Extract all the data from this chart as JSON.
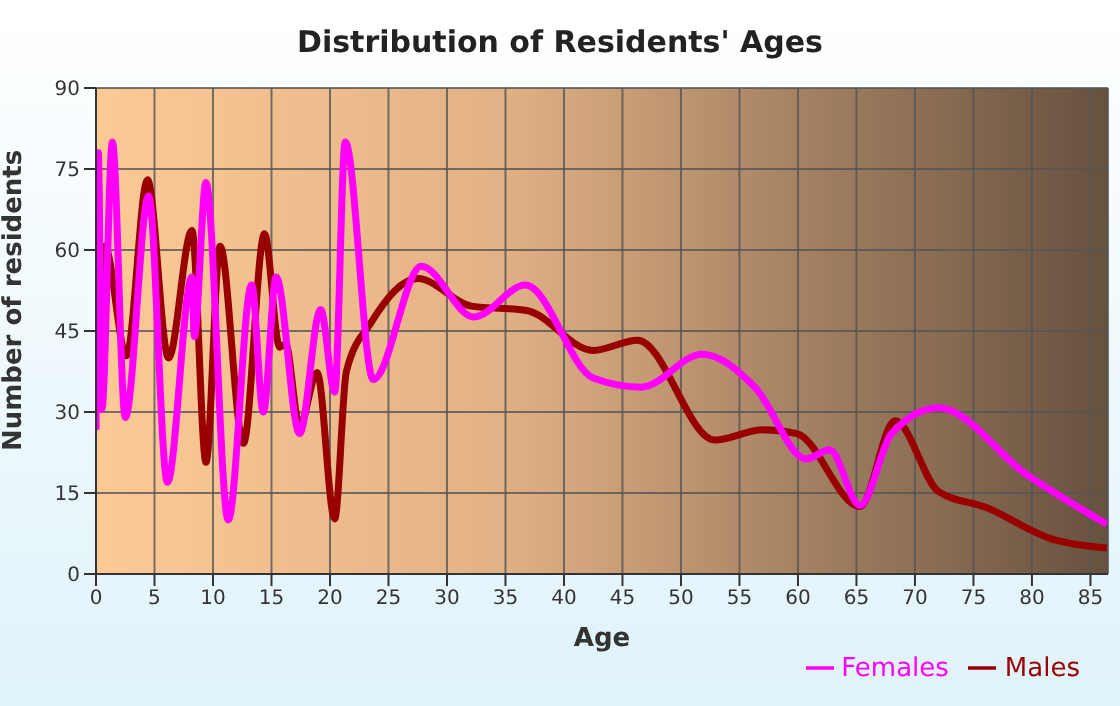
{
  "chart_data": {
    "type": "line",
    "title": "Distribution of Residents' Ages",
    "xlabel": "Age",
    "ylabel": "Number of residents",
    "xlim": [
      0,
      86.5
    ],
    "xticks": [
      0,
      5,
      10,
      15,
      20,
      25,
      30,
      35,
      40,
      45,
      50,
      55,
      60,
      65,
      70,
      75,
      80,
      85
    ],
    "ylim": [
      0,
      90
    ],
    "yticks": [
      0,
      15,
      30,
      45,
      60,
      75,
      90
    ],
    "grid": true,
    "legend": "bottom right",
    "marker": "none",
    "line_style": "solid",
    "series": [
      {
        "name": "Males",
        "color": "#990000",
        "x": [
          0,
          0.35,
          0.75,
          2.6,
          4.4,
          6.2,
          8.2,
          9.4,
          10.6,
          12.6,
          14.4,
          15.7,
          16.2,
          17.4,
          18.9,
          20.4,
          21.4,
          23.5,
          27.5,
          32.1,
          36.8,
          42.5,
          46.3,
          52.9,
          57,
          59.9,
          65.3,
          68.3,
          72,
          76.1,
          81.8,
          86.4
        ],
        "values": [
          66,
          42,
          60.7,
          40.4,
          73,
          40,
          63.6,
          20.7,
          60.7,
          24.2,
          63,
          42,
          42.6,
          27.4,
          37.3,
          10.2,
          37.5,
          46.5,
          54.7,
          49.6,
          48.8,
          41.4,
          43.3,
          24.8,
          26.7,
          26,
          12.5,
          28.4,
          15.3,
          12.3,
          6.4,
          4.8
        ]
      },
      {
        "name": "Females",
        "color": "#ff00ff",
        "x": [
          0,
          0.2,
          0.5,
          1.4,
          2.5,
          4.5,
          6.1,
          8.2,
          8.4,
          9.4,
          11.3,
          13.3,
          14.3,
          15.4,
          17.4,
          19.2,
          20.4,
          21.3,
          23.7,
          27.8,
          32.3,
          36.7,
          42.5,
          46.6,
          51.8,
          56.4,
          60.7,
          62.7,
          65.3,
          68,
          72,
          79.5,
          86.4
        ],
        "values": [
          26.7,
          78,
          30.5,
          80,
          29,
          70,
          17,
          55,
          44,
          72.5,
          10,
          53.5,
          30,
          55,
          26,
          49,
          33.7,
          80,
          36,
          57,
          47.6,
          53.5,
          36.3,
          34.6,
          40.7,
          34.4,
          21.3,
          23,
          12.7,
          26,
          30.8,
          18.5,
          9.2
        ]
      }
    ]
  }
}
